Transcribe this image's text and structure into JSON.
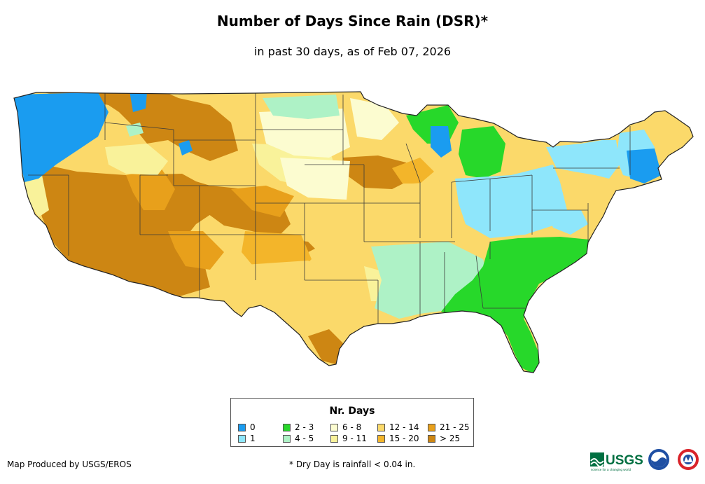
{
  "header": {
    "title": "Number of Days Since Rain (DSR)*",
    "subtitle": "in past 30 days, as of Feb 07, 2026"
  },
  "legend": {
    "title": "Nr. Days",
    "items": [
      {
        "label": "0",
        "color": "#1a9cf0"
      },
      {
        "label": "1",
        "color": "#8ee6fb"
      },
      {
        "label": "2 - 3",
        "color": "#27d82a"
      },
      {
        "label": "4 - 5",
        "color": "#aef2c6"
      },
      {
        "label": "6 - 8",
        "color": "#fcfcd0"
      },
      {
        "label": "9 - 11",
        "color": "#f9f29a"
      },
      {
        "label": "12 - 14",
        "color": "#fbd96a"
      },
      {
        "label": "15 - 20",
        "color": "#f3b52a"
      },
      {
        "label": "21 - 25",
        "color": "#e8a01b"
      },
      {
        "label": "> 25",
        "color": "#cd8613"
      }
    ]
  },
  "footer": {
    "credit": "Map Produced by USGS/EROS",
    "footnote": "* Dry Day is rainfall < 0.04 in.",
    "logo_text": "USGS",
    "logo_tagline": "science for a changing world"
  }
}
